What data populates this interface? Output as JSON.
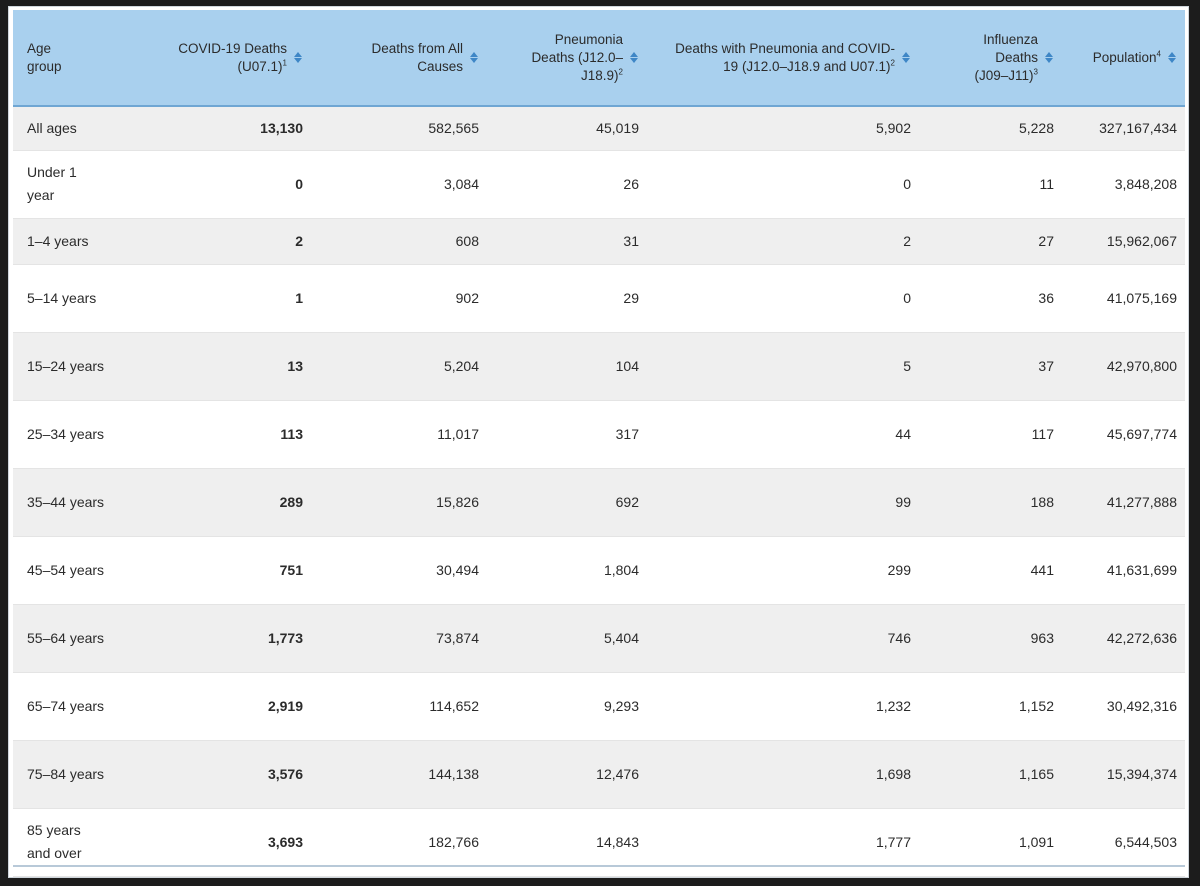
{
  "table": {
    "headers": [
      {
        "label": "Age group",
        "sup": "",
        "align": "left"
      },
      {
        "label": "COVID-19 Deaths (U07.1)",
        "sup": "1",
        "align": "right"
      },
      {
        "label": "Deaths from All Causes",
        "sup": "",
        "align": "right"
      },
      {
        "label": "Pneumonia Deaths (J12.0–J18.9)",
        "sup": "2",
        "align": "right"
      },
      {
        "label": "Deaths with Pneumonia and COVID-19 (J12.0–J18.9 and U07.1)",
        "sup": "2",
        "align": "right"
      },
      {
        "label": "Influenza Deaths (J09–J11)",
        "sup": "3",
        "align": "right"
      },
      {
        "label": "Population",
        "sup": "4",
        "align": "right"
      }
    ],
    "rows": [
      {
        "age": "All ages",
        "covid": "13,130",
        "all_causes": "582,565",
        "pneumonia": "45,019",
        "pneumonia_covid": "5,902",
        "influenza": "5,228",
        "population": "327,167,434"
      },
      {
        "age": "Under 1 year",
        "covid": "0",
        "all_causes": "3,084",
        "pneumonia": "26",
        "pneumonia_covid": "0",
        "influenza": "11",
        "population": "3,848,208"
      },
      {
        "age": "1–4 years",
        "covid": "2",
        "all_causes": "608",
        "pneumonia": "31",
        "pneumonia_covid": "2",
        "influenza": "27",
        "population": "15,962,067"
      },
      {
        "age": "5–14 years",
        "covid": "1",
        "all_causes": "902",
        "pneumonia": "29",
        "pneumonia_covid": "0",
        "influenza": "36",
        "population": "41,075,169"
      },
      {
        "age": "15–24 years",
        "covid": "13",
        "all_causes": "5,204",
        "pneumonia": "104",
        "pneumonia_covid": "5",
        "influenza": "37",
        "population": "42,970,800"
      },
      {
        "age": "25–34 years",
        "covid": "113",
        "all_causes": "11,017",
        "pneumonia": "317",
        "pneumonia_covid": "44",
        "influenza": "117",
        "population": "45,697,774"
      },
      {
        "age": "35–44 years",
        "covid": "289",
        "all_causes": "15,826",
        "pneumonia": "692",
        "pneumonia_covid": "99",
        "influenza": "188",
        "population": "41,277,888"
      },
      {
        "age": "45–54 years",
        "covid": "751",
        "all_causes": "30,494",
        "pneumonia": "1,804",
        "pneumonia_covid": "299",
        "influenza": "441",
        "population": "41,631,699"
      },
      {
        "age": "55–64 years",
        "covid": "1,773",
        "all_causes": "73,874",
        "pneumonia": "5,404",
        "pneumonia_covid": "746",
        "influenza": "963",
        "population": "42,272,636"
      },
      {
        "age": "65–74 years",
        "covid": "2,919",
        "all_causes": "114,652",
        "pneumonia": "9,293",
        "pneumonia_covid": "1,232",
        "influenza": "1,152",
        "population": "30,492,316"
      },
      {
        "age": "75–84 years",
        "covid": "3,576",
        "all_causes": "144,138",
        "pneumonia": "12,476",
        "pneumonia_covid": "1,698",
        "influenza": "1,165",
        "population": "15,394,374"
      },
      {
        "age": "85 years and over",
        "covid": "3,693",
        "all_causes": "182,766",
        "pneumonia": "14,843",
        "pneumonia_covid": "1,777",
        "influenza": "1,091",
        "population": "6,544,503"
      }
    ]
  },
  "colors": {
    "header_bg": "#a9d0ee",
    "sort_icon": "#3e86c6",
    "row_stripe": "#efefef"
  },
  "icons": {
    "sort": "sort-icon"
  }
}
